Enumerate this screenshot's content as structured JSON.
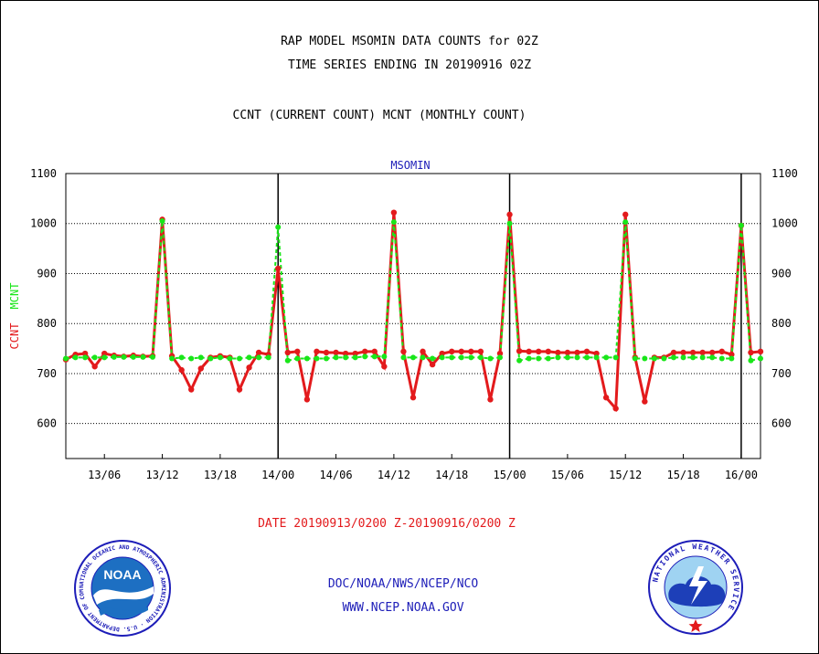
{
  "titles": {
    "line1": "RAP MODEL MSOMIN DATA COUNTS for 02Z",
    "line2": "TIME SERIES ENDING IN 20190916 02Z",
    "line3": "CCNT (CURRENT COUNT) MCNT (MONTHLY COUNT)"
  },
  "footer": {
    "date_range": "DATE 20190913/0200 Z-20190916/0200 Z",
    "org": "DOC/NOAA/NWS/NCEP/NCO",
    "url": "WWW.NCEP.NOAA.GOV"
  },
  "logos": {
    "left": {
      "name": "noaa-logo",
      "text": "NOAA",
      "ring_text": "NATIONAL OCEANIC AND ATMOSPHERIC ADMINISTRATION · U.S. DEPARTMENT OF COMMERCE"
    },
    "right": {
      "name": "national-weather-service-logo",
      "ring_text": "NATIONAL WEATHER SERVICE"
    }
  },
  "colors": {
    "ccnt": "#e31a1c",
    "mcnt": "#19e619",
    "label_blue": "#1d1db8",
    "noaa_blue": "#1d6fc2"
  },
  "chart_data": {
    "type": "line",
    "inner_title": "MSOMIN",
    "ylabel_series_labels": [
      "CCNT",
      "MCNT"
    ],
    "ylim": [
      530,
      1100
    ],
    "yticks": [
      600,
      700,
      800,
      900,
      1000,
      1100
    ],
    "x_unit": "hours since 20190913/0200Z",
    "xlim": [
      0,
      72
    ],
    "xticks": [
      {
        "h": 4,
        "label": "13/06"
      },
      {
        "h": 10,
        "label": "13/12"
      },
      {
        "h": 16,
        "label": "13/18"
      },
      {
        "h": 22,
        "label": "14/00"
      },
      {
        "h": 28,
        "label": "14/06"
      },
      {
        "h": 34,
        "label": "14/12"
      },
      {
        "h": 40,
        "label": "14/18"
      },
      {
        "h": 46,
        "label": "15/00"
      },
      {
        "h": 52,
        "label": "15/06"
      },
      {
        "h": 58,
        "label": "15/12"
      },
      {
        "h": 64,
        "label": "15/18"
      },
      {
        "h": 70,
        "label": "16/00"
      }
    ],
    "day_boundaries": [
      22,
      46,
      70
    ],
    "grid": "horizontal-dotted",
    "series": [
      {
        "name": "CCNT",
        "color": "#e31a1c",
        "x": [
          0,
          1,
          2,
          3,
          4,
          5,
          6,
          7,
          8,
          9,
          10,
          11,
          12,
          13,
          14,
          15,
          16,
          17,
          18,
          19,
          20,
          21,
          22,
          23,
          24,
          25,
          26,
          27,
          28,
          29,
          30,
          31,
          32,
          33,
          34,
          35,
          36,
          37,
          38,
          39,
          40,
          41,
          42,
          43,
          44,
          45,
          46,
          47,
          48,
          49,
          50,
          51,
          52,
          53,
          54,
          55,
          56,
          57,
          58,
          59,
          60,
          61,
          62,
          63,
          64,
          65,
          66,
          67,
          68,
          69,
          70,
          71,
          72
        ],
        "values": [
          728,
          738,
          740,
          714,
          740,
          736,
          734,
          736,
          734,
          735,
          1008,
          735,
          707,
          668,
          710,
          732,
          735,
          732,
          668,
          712,
          742,
          738,
          910,
          742,
          744,
          648,
          744,
          742,
          742,
          740,
          740,
          744,
          744,
          714,
          1022,
          744,
          652,
          744,
          718,
          740,
          744,
          744,
          744,
          744,
          648,
          740,
          1018,
          745,
          744,
          744,
          744,
          742,
          742,
          742,
          744,
          740,
          652,
          630,
          1018,
          732,
          644,
          732,
          732,
          742,
          742,
          742,
          742,
          742,
          744,
          738,
          996,
          742,
          744
        ]
      },
      {
        "name": "MCNT",
        "color": "#19e619",
        "x": [
          0,
          1,
          2,
          3,
          4,
          5,
          6,
          7,
          8,
          9,
          10,
          11,
          12,
          13,
          14,
          15,
          16,
          17,
          18,
          19,
          20,
          21,
          22,
          23,
          24,
          25,
          26,
          27,
          28,
          29,
          30,
          31,
          32,
          33,
          34,
          35,
          36,
          37,
          38,
          39,
          40,
          41,
          42,
          43,
          44,
          45,
          46,
          47,
          48,
          49,
          50,
          51,
          52,
          53,
          54,
          55,
          56,
          57,
          58,
          59,
          60,
          61,
          62,
          63,
          64,
          65,
          66,
          67,
          68,
          69,
          70,
          71,
          72
        ],
        "values": [
          730,
          732,
          732,
          732,
          732,
          733,
          733,
          733,
          733,
          733,
          1005,
          730,
          732,
          730,
          732,
          730,
          732,
          730,
          730,
          732,
          732,
          732,
          993,
          726,
          730,
          730,
          730,
          730,
          732,
          732,
          732,
          734,
          734,
          734,
          1003,
          732,
          732,
          732,
          730,
          732,
          732,
          732,
          732,
          732,
          730,
          732,
          1000,
          726,
          730,
          730,
          730,
          732,
          732,
          732,
          732,
          732,
          732,
          732,
          1003,
          730,
          730,
          730,
          730,
          732,
          732,
          732,
          732,
          732,
          730,
          730,
          996,
          726,
          730
        ]
      }
    ]
  }
}
